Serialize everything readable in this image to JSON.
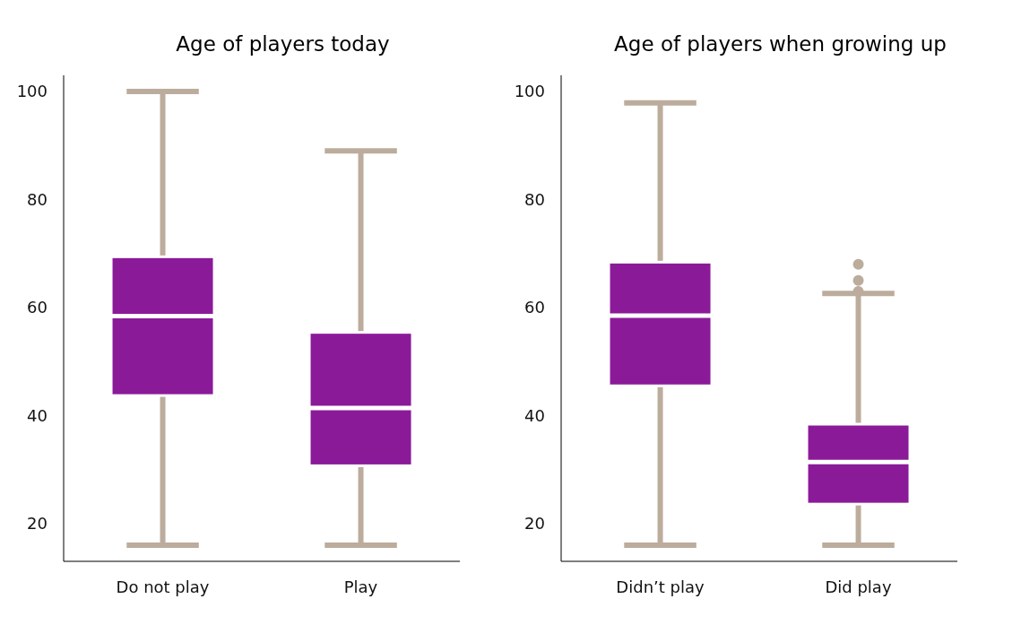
{
  "chart_data": [
    {
      "type": "box",
      "title": "Age of players today",
      "categories": [
        "Do not play",
        "Play"
      ],
      "color": "#8b1a99",
      "ylim": [
        13,
        103
      ],
      "yticks": [
        20,
        40,
        60,
        80,
        100
      ],
      "grid": false,
      "boxes": [
        {
          "low": 16,
          "q1": 43.7,
          "median": 58.4,
          "q3": 69.4,
          "high": 100
        },
        {
          "low": 16,
          "q1": 30.7,
          "median": 41.4,
          "q3": 55.4,
          "high": 89
        }
      ]
    },
    {
      "type": "box",
      "title": "Age of players when growing up",
      "categories": [
        "Didn’t play",
        "Did play"
      ],
      "color": "#8b1a99",
      "ylim": [
        13,
        103
      ],
      "yticks": [
        20,
        40,
        60,
        80,
        100
      ],
      "grid": false,
      "boxes": [
        {
          "low": 16,
          "q1": 45.5,
          "median": 58.5,
          "q3": 68.4,
          "high": 97.9
        },
        {
          "low": 16,
          "q1": 23.6,
          "median": 31.4,
          "q3": 38.4,
          "high": 62.6,
          "outliers": [
            68,
            65,
            63
          ]
        }
      ]
    }
  ]
}
